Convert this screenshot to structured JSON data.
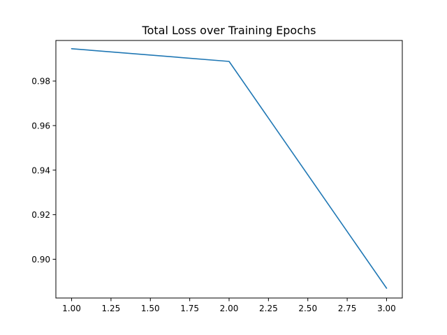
{
  "chart_data": {
    "type": "line",
    "title": "Total Loss over Training Epochs",
    "xlabel": "",
    "ylabel": "",
    "x": [
      1.0,
      2.0,
      3.0
    ],
    "series": [
      {
        "values": [
          0.9945,
          0.9888,
          0.887
        ],
        "color": "#1f77b4"
      }
    ],
    "xlim": [
      0.9,
      3.1
    ],
    "ylim": [
      0.8826,
      0.9982
    ],
    "xticks": [
      1.0,
      1.25,
      1.5,
      1.75,
      2.0,
      2.25,
      2.5,
      2.75,
      3.0
    ],
    "xtick_labels": [
      "1.00",
      "1.25",
      "1.50",
      "1.75",
      "2.00",
      "2.25",
      "2.50",
      "2.75",
      "3.00"
    ],
    "yticks": [
      0.9,
      0.92,
      0.94,
      0.96,
      0.98
    ],
    "ytick_labels": [
      "0.90",
      "0.92",
      "0.94",
      "0.96",
      "0.98"
    ],
    "grid": false,
    "legend": "none"
  }
}
